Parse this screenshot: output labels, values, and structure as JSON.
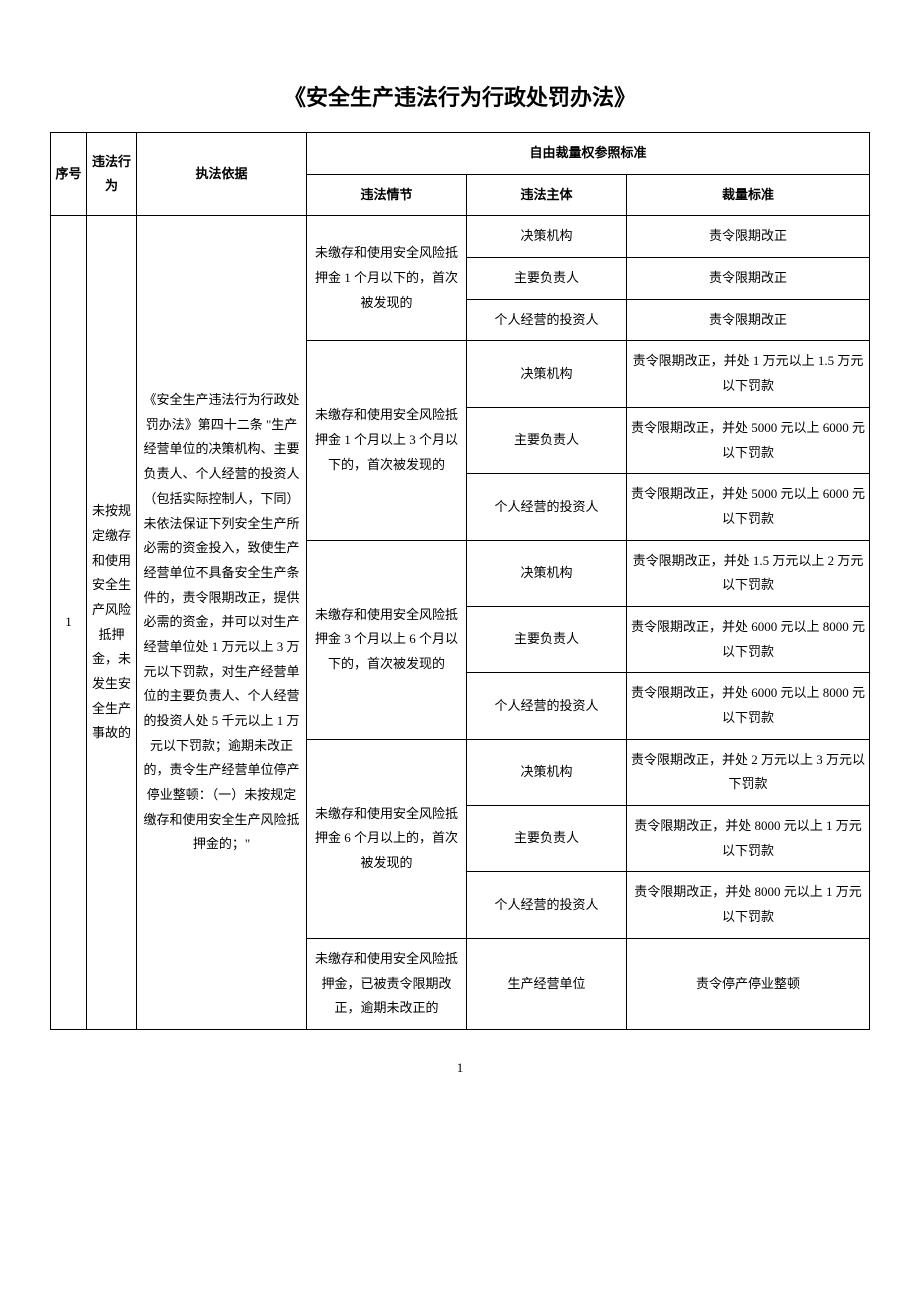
{
  "title": "《安全生产违法行为行政处罚办法》",
  "header": {
    "seq": "序号",
    "violation": "违法行为",
    "basis": "执法依据",
    "standard_group": "自由裁量权参照标准",
    "circumstance": "违法情节",
    "subject": "违法主体",
    "standard": "裁量标准"
  },
  "row": {
    "seq": "1",
    "violation": "未按规定缴存和使用安全生产风险抵押金，未发生安全生产事故的",
    "basis": "《安全生产违法行为行政处罚办法》第四十二条 \"生产经营单位的决策机构、主要负责人、个人经营的投资人（包括实际控制人，下同）未依法保证下列安全生产所必需的资金投入，致使生产经营单位不具备安全生产条件的，责令限期改正，提供必需的资金，并可以对生产经营单位处 1 万元以上 3 万元以下罚款，对生产经营单位的主要负责人、个人经营的投资人处 5 千元以上 1 万元以下罚款；逾期未改正的，责令生产经营单位停产停业整顿：（一）未按规定缴存和使用安全生产风险抵押金的；\""
  },
  "circumstances": [
    {
      "text": "未缴存和使用安全风险抵押金 1 个月以下的，首次被发现的",
      "subjects": [
        {
          "subject": "决策机构",
          "standard": "责令限期改正"
        },
        {
          "subject": "主要负责人",
          "standard": "责令限期改正"
        },
        {
          "subject": "个人经营的投资人",
          "standard": "责令限期改正"
        }
      ]
    },
    {
      "text": "未缴存和使用安全风险抵押金 1 个月以上 3 个月以下的，首次被发现的",
      "subjects": [
        {
          "subject": "决策机构",
          "standard": "责令限期改正，并处 1 万元以上 1.5 万元以下罚款"
        },
        {
          "subject": "主要负责人",
          "standard": "责令限期改正，并处 5000 元以上 6000 元以下罚款"
        },
        {
          "subject": "个人经营的投资人",
          "standard": "责令限期改正，并处 5000 元以上 6000 元以下罚款"
        }
      ]
    },
    {
      "text": "未缴存和使用安全风险抵押金 3 个月以上 6 个月以下的，首次被发现的",
      "subjects": [
        {
          "subject": "决策机构",
          "standard": "责令限期改正，并处 1.5 万元以上 2 万元以下罚款"
        },
        {
          "subject": "主要负责人",
          "standard": "责令限期改正，并处 6000 元以上 8000 元以下罚款"
        },
        {
          "subject": "个人经营的投资人",
          "standard": "责令限期改正，并处 6000 元以上 8000 元以下罚款"
        }
      ]
    },
    {
      "text": "未缴存和使用安全风险抵押金 6 个月以上的，首次被发现的",
      "subjects": [
        {
          "subject": "决策机构",
          "standard": "责令限期改正，并处 2 万元以上 3 万元以下罚款"
        },
        {
          "subject": "主要负责人",
          "standard": "责令限期改正，并处 8000 元以上 1 万元以下罚款"
        },
        {
          "subject": "个人经营的投资人",
          "standard": "责令限期改正，并处 8000 元以上 1 万元以下罚款"
        }
      ]
    },
    {
      "text": "未缴存和使用安全风险抵押金，已被责令限期改正，逾期未改正的",
      "subjects": [
        {
          "subject": "生产经营单位",
          "standard": "责令停产停业整顿"
        }
      ]
    }
  ],
  "page_number": "1"
}
